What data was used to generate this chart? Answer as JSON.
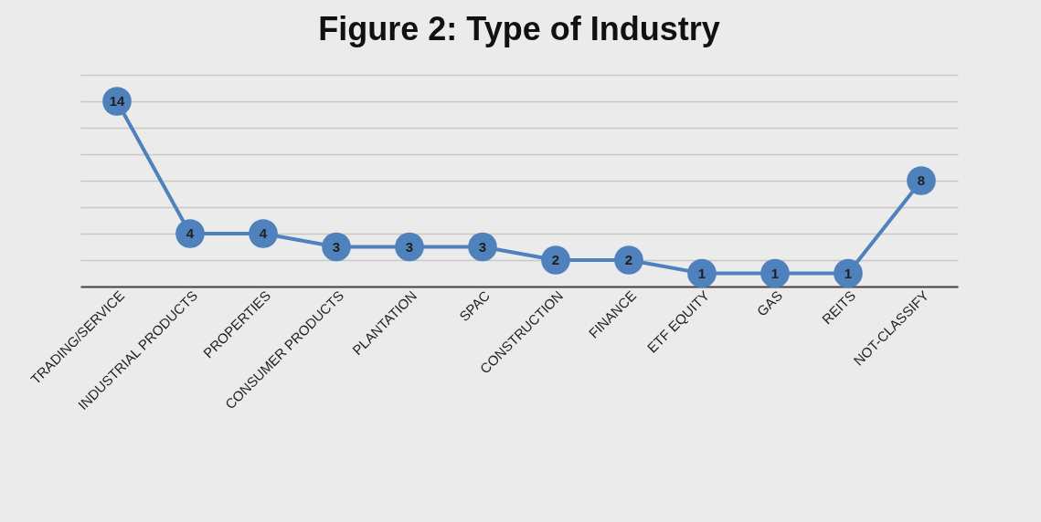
{
  "chart_data": {
    "type": "line",
    "title": "Figure 2: Type of Industry",
    "categories": [
      "TRADING/SERVICE",
      "INDUSTRIAL PRODUCTS",
      "PROPERTIES",
      "CONSUMER PRODUCTS",
      "PLANTATION",
      "SPAC",
      "CONSTRUCTION",
      "FINANCE",
      "ETF EQUITY",
      "GAS",
      "REITS",
      "NOT-CLASSIFY"
    ],
    "values": [
      14,
      4,
      4,
      3,
      3,
      3,
      2,
      2,
      1,
      1,
      1,
      8
    ],
    "color": "#4f81bd",
    "ylim": [
      0,
      16
    ],
    "grid": "y",
    "tick_labels": "x",
    "marker": "circle",
    "line_style": "solid",
    "data_labels": true
  }
}
